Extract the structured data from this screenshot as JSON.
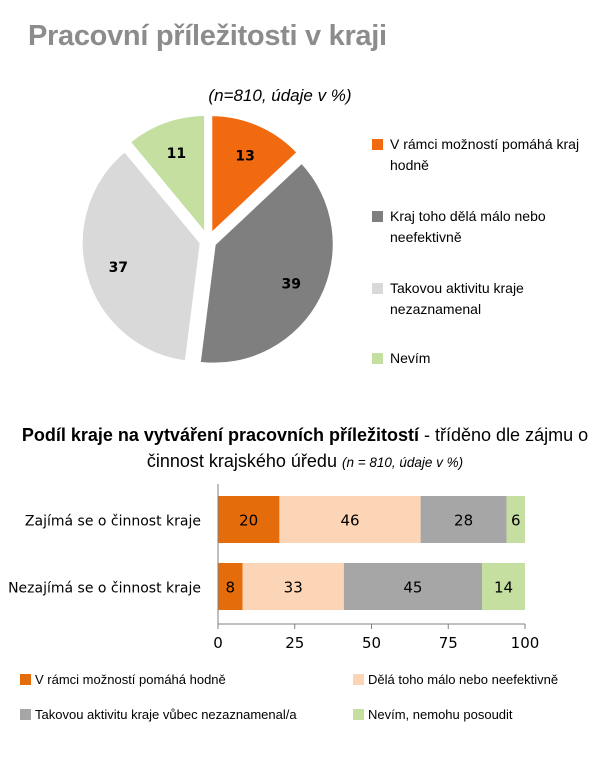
{
  "page_title": "Pracovní příležitosti v kraji",
  "chart_data": [
    {
      "type": "pie",
      "subtitle": "(n=810, údaje v %)",
      "slices": [
        {
          "label": "V rámci možností pomáhá kraj hodně",
          "value": 13,
          "color": "#f26a10"
        },
        {
          "label": "Kraj toho dělá málo nebo neefektivně",
          "value": 39,
          "color": "#7f7f7f"
        },
        {
          "label": "Takovou aktivitu kraje nezaznamenal",
          "value": 37,
          "color": "#d9d9d9"
        },
        {
          "label": "Nevím",
          "value": 11,
          "color": "#c4dfa0"
        }
      ],
      "legend_position": "right"
    },
    {
      "type": "bar",
      "orientation": "horizontal",
      "stacked": true,
      "title_bold": "Podíl kraje na vytváření pracovních příležitostí",
      "title_rest": " - tříděno dle zájmu o činnost krajského úředu ",
      "title_note": "(n = 810, údaje v %)",
      "categories": [
        "Zajímá se o činnost kraje",
        "Nezajímá se o činnost kraje"
      ],
      "series": [
        {
          "name": "V rámci možností pomáhá hodně",
          "values": [
            20,
            8
          ],
          "color": "#e46c0a"
        },
        {
          "name": "Dělá toho málo nebo neefektivně",
          "values": [
            46,
            33
          ],
          "color": "#fbd5b5"
        },
        {
          "name": "Takovou aktivitu kraje vůbec nezaznamenal/a",
          "values": [
            28,
            45
          ],
          "color": "#a6a6a6"
        },
        {
          "name": "Nevím, nemohu posoudit",
          "values": [
            6,
            14
          ],
          "color": "#c4dfa0"
        }
      ],
      "xlim": [
        0,
        100
      ],
      "xticks": [
        "0",
        "25",
        "50",
        "75",
        "100"
      ],
      "grid": false,
      "legend_position": "bottom"
    }
  ]
}
